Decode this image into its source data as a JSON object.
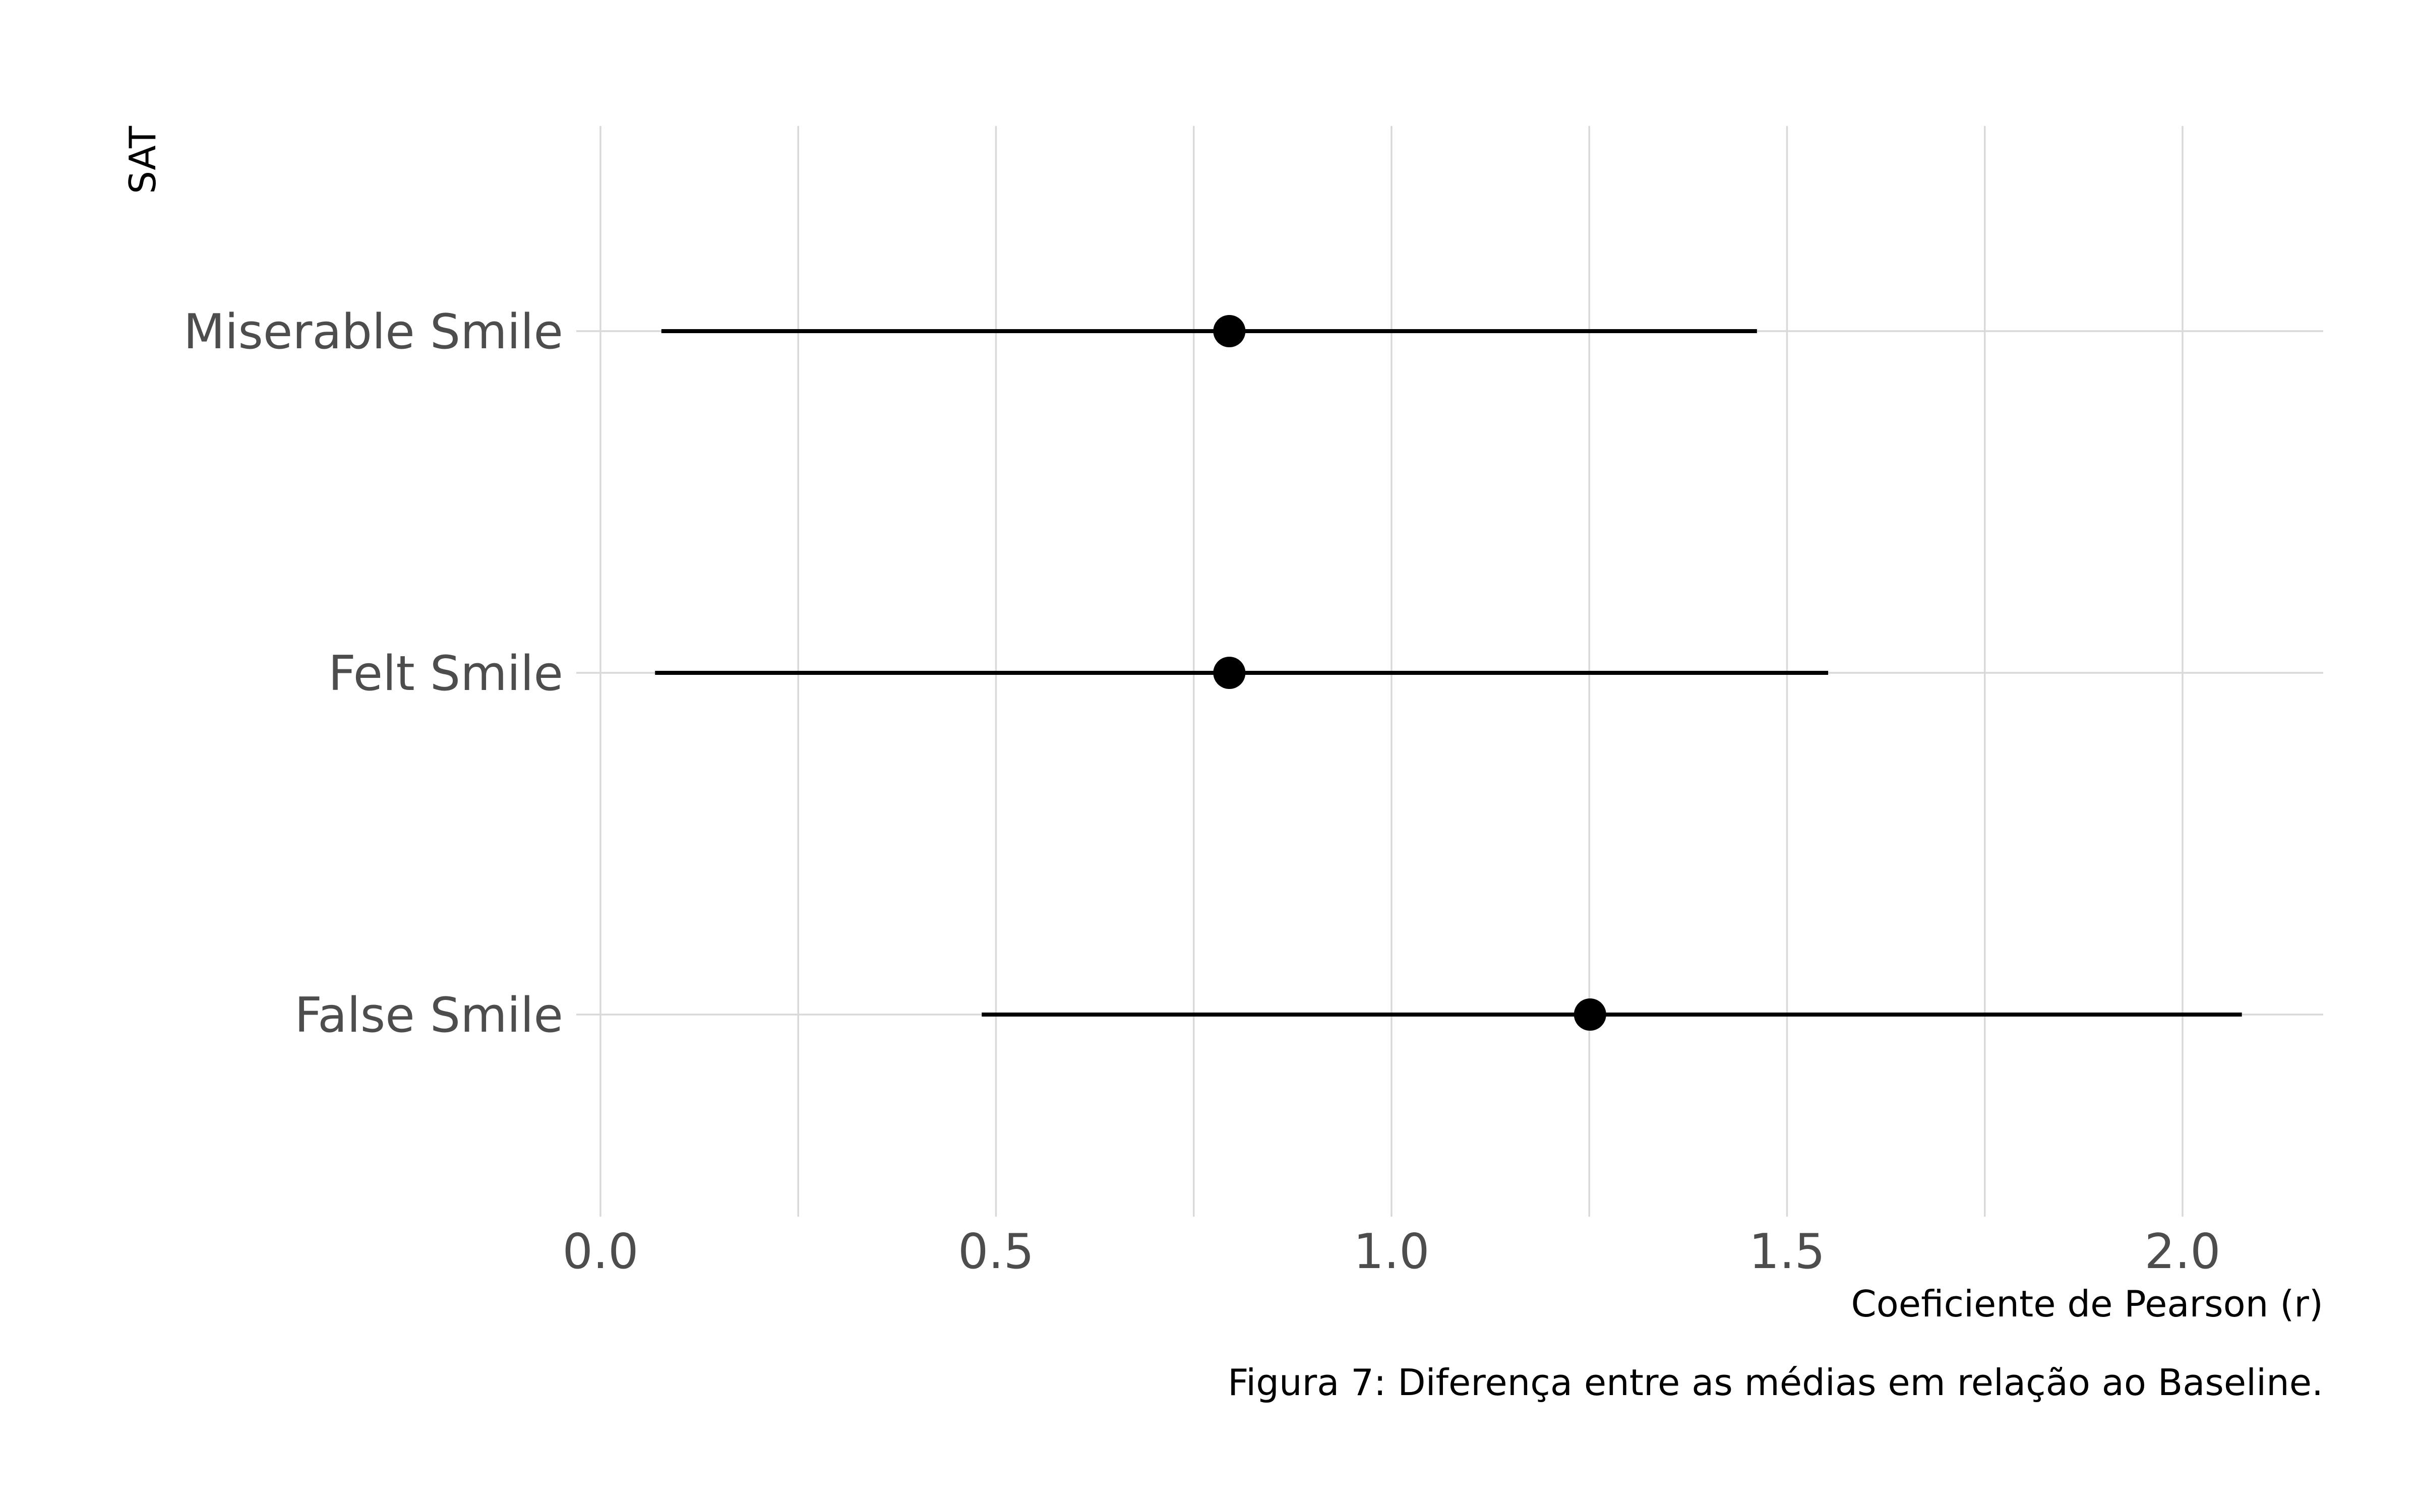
{
  "chart_data": {
    "type": "scatter",
    "subtype": "point-range",
    "orientation": "horizontal",
    "ylabel": "SAT",
    "xlabel": "Coeficiente de Pearson (r)",
    "caption": "Figura 7: Diferença entre as médias em relação ao Baseline.",
    "categories": [
      "Miserable Smile",
      "Felt Smile",
      "False Smile"
    ],
    "x_ticks": [
      {
        "value": 0.0,
        "label": "0.0"
      },
      {
        "value": 0.5,
        "label": "0.5"
      },
      {
        "value": 1.0,
        "label": "1.0"
      },
      {
        "value": 1.5,
        "label": "1.5"
      },
      {
        "value": 2.0,
        "label": "2.0"
      }
    ],
    "x_minor_grid": [
      0.25,
      0.75,
      1.25,
      1.75
    ],
    "xlim": [
      0.0,
      2.18
    ],
    "grid": true,
    "colors": {
      "points": "#000000",
      "grid": "#d9d9d9",
      "tick_text": "#4d4d4d"
    },
    "points": [
      {
        "category": "Miserable Smile",
        "estimate": 0.795,
        "lower": 0.077,
        "upper": 1.462
      },
      {
        "category": "Felt Smile",
        "estimate": 0.795,
        "lower": 0.069,
        "upper": 1.552
      },
      {
        "category": "False Smile",
        "estimate": 1.251,
        "lower": 0.482,
        "upper": 2.075
      }
    ]
  }
}
